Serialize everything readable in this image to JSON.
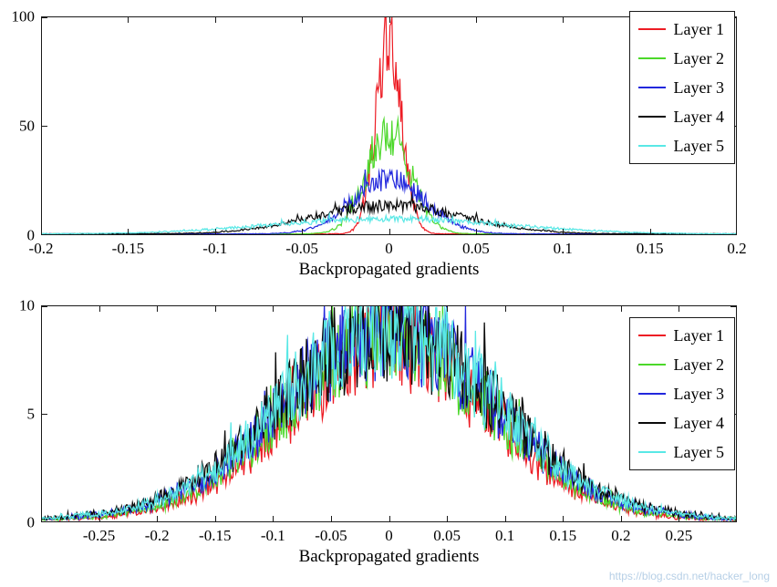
{
  "watermark": {
    "text": "https://blog.csdn.net/hacker_long"
  },
  "chart_data": [
    {
      "type": "line",
      "plot_style": "histogram-line",
      "title": "",
      "xlabel": "Backpropagated gradients",
      "ylabel": "",
      "xlim": [
        -0.2,
        0.2
      ],
      "ylim": [
        0,
        100
      ],
      "xticks": [
        "-0.2",
        "-0.15",
        "-0.1",
        "-0.05",
        "0",
        "0.05",
        "0.1",
        "0.15",
        "0.2"
      ],
      "yticks": [
        "0",
        "50",
        "100"
      ],
      "grid": false,
      "legend_position": "top-right",
      "series": [
        {
          "name": "Layer 1",
          "color": "#ed1c24",
          "shape": "gaussian",
          "center": 0,
          "peak": 88,
          "sigma": 0.0075
        },
        {
          "name": "Layer 2",
          "color": "#4cd82a",
          "shape": "gaussian",
          "center": 0,
          "peak": 45,
          "sigma": 0.013
        },
        {
          "name": "Layer 3",
          "color": "#2228dd",
          "shape": "gaussian",
          "center": 0,
          "peak": 25,
          "sigma": 0.021
        },
        {
          "name": "Layer 4",
          "color": "#0a0a0a",
          "shape": "gaussian",
          "center": 0,
          "peak": 13,
          "sigma": 0.042
        },
        {
          "name": "Layer 5",
          "color": "#59e8e6",
          "shape": "gaussian",
          "center": 0,
          "peak": 7,
          "sigma": 0.065
        }
      ]
    },
    {
      "type": "line",
      "plot_style": "histogram-line",
      "title": "",
      "xlabel": "Backpropagated gradients",
      "ylabel": "",
      "xlim": [
        -0.3,
        0.3
      ],
      "ylim": [
        0,
        10
      ],
      "xticks": [
        "-0.25",
        "-0.2",
        "-0.15",
        "-0.1",
        "-0.05",
        "0",
        "0.05",
        "0.1",
        "0.15",
        "0.2",
        "0.25"
      ],
      "yticks": [
        "0",
        "5",
        "10"
      ],
      "grid": false,
      "legend_position": "top-right",
      "series": [
        {
          "name": "Layer 1",
          "color": "#ed1c24",
          "shape": "gaussian",
          "center": 0,
          "peak": 8.3,
          "sigma": 0.083
        },
        {
          "name": "Layer 2",
          "color": "#4cd82a",
          "shape": "gaussian",
          "center": 0,
          "peak": 8.6,
          "sigma": 0.086
        },
        {
          "name": "Layer 3",
          "color": "#2228dd",
          "shape": "gaussian",
          "center": 0,
          "peak": 8.8,
          "sigma": 0.09
        },
        {
          "name": "Layer 4",
          "color": "#0a0a0a",
          "shape": "gaussian",
          "center": 0,
          "peak": 8.7,
          "sigma": 0.094
        },
        {
          "name": "Layer 5",
          "color": "#59e8e6",
          "shape": "gaussian",
          "center": 0,
          "peak": 8.9,
          "sigma": 0.092
        }
      ]
    }
  ]
}
